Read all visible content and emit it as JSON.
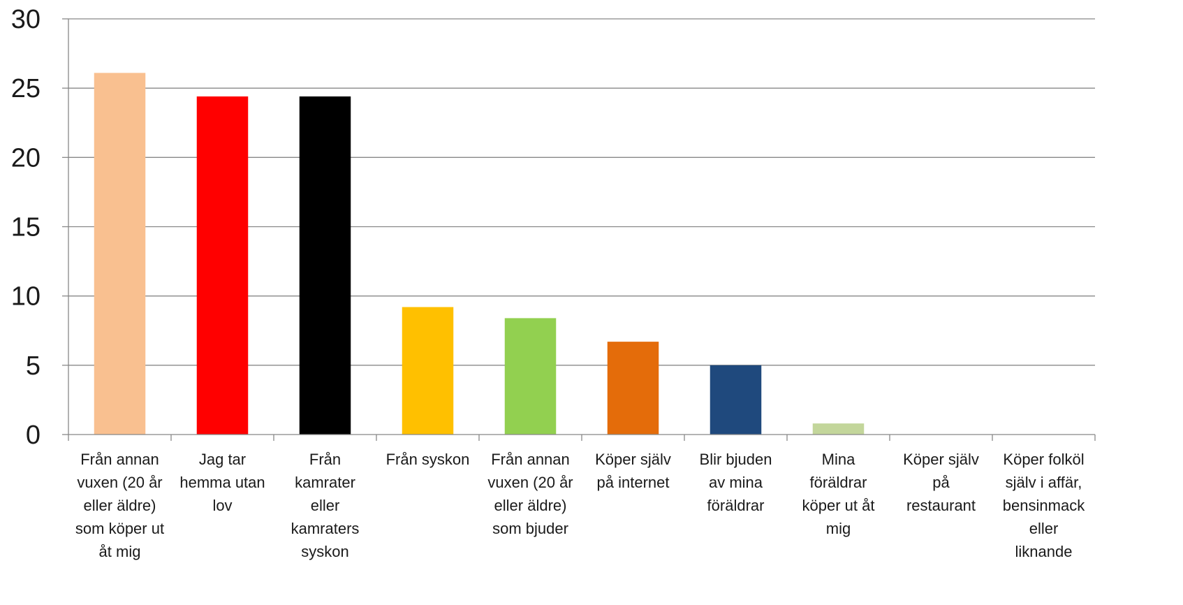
{
  "chart_data": {
    "type": "bar",
    "title": "",
    "xlabel": "",
    "ylabel": "",
    "ylim": [
      0,
      30
    ],
    "yticks": [
      0,
      5,
      10,
      15,
      20,
      25,
      30
    ],
    "grid": true,
    "legend": "none",
    "categories": [
      "Från annan vuxen (20 år eller äldre) som köper ut åt mig",
      "Jag tar hemma utan lov",
      "Från kamrater eller kamraters syskon",
      "Från syskon",
      "Från annan vuxen (20 år eller äldre) som bjuder",
      "Köper själv på internet",
      "Blir bjuden av mina föräldrar",
      "Mina föräldrar köper ut åt mig",
      "Köper själv på restaurant",
      "Köper folköl själv i affär, bensinmack eller liknande"
    ],
    "category_lines": [
      [
        "Från annan",
        "vuxen (20 år",
        "eller äldre)",
        "som köper ut",
        "åt mig"
      ],
      [
        "Jag tar",
        "hemma utan",
        "lov"
      ],
      [
        "Från",
        "kamrater",
        "eller",
        "kamraters",
        "syskon"
      ],
      [
        "Från syskon"
      ],
      [
        "Från annan",
        "vuxen (20 år",
        "eller äldre)",
        "som bjuder"
      ],
      [
        "Köper själv",
        "på internet"
      ],
      [
        "Blir bjuden",
        "av mina",
        "föräldrar"
      ],
      [
        "Mina",
        "föräldrar",
        "köper ut åt",
        "mig"
      ],
      [
        "Köper själv",
        "på",
        "restaurant"
      ],
      [
        "Köper folköl",
        "själv i affär,",
        "bensinmack",
        "eller",
        "liknande"
      ]
    ],
    "values": [
      26.1,
      24.4,
      24.4,
      9.2,
      8.4,
      6.7,
      5.0,
      0.8,
      0,
      0
    ],
    "colors": [
      "#F9C090",
      "#FF0000",
      "#000000",
      "#FFC000",
      "#92D050",
      "#E46C0A",
      "#1F497D",
      "#C3D69B",
      "#FFFFFF",
      "#FFFFFF"
    ],
    "gridline_color": "#888888",
    "axis_color": "#888888"
  }
}
